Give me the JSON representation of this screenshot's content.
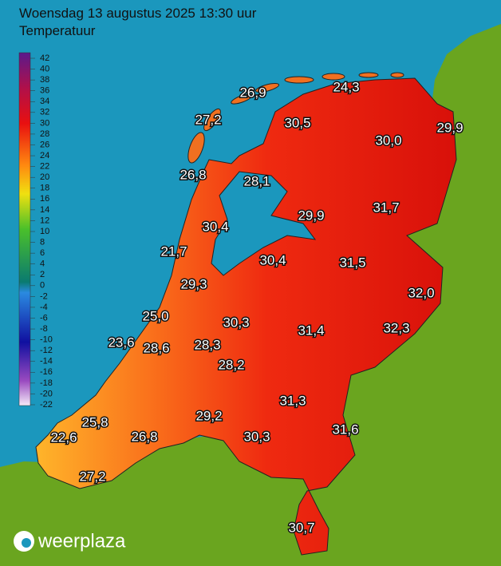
{
  "header": {
    "title": "Woensdag 13 augustus 2025 13:30 uur",
    "subtitle": "Temperatuur"
  },
  "legend": {
    "labels": [
      "42",
      "40",
      "38",
      "36",
      "34",
      "32",
      "30",
      "28",
      "26",
      "24",
      "22",
      "20",
      "18",
      "16",
      "14",
      "12",
      "10",
      "8",
      "6",
      "4",
      "2",
      "0",
      "-2",
      "-4",
      "-6",
      "-8",
      "-10",
      "-12",
      "-14",
      "-16",
      "-18",
      "-20",
      "-22"
    ]
  },
  "stations": [
    "26,9",
    "24,3",
    "27,2",
    "30,5",
    "29,9",
    "30,0",
    "26,8",
    "28,1",
    "29,9",
    "31,7",
    "30,4",
    "21,7",
    "30,4",
    "31,5",
    "32,0",
    "29,3",
    "25,0",
    "30,3",
    "31,4",
    "32,3",
    "23,6",
    "28,6",
    "28,3",
    "28,2",
    "31,3",
    "29,2",
    "25,8",
    "26,8",
    "22,6",
    "31,6",
    "30,3",
    "27,2",
    "30,7"
  ],
  "logo": "weerplaza"
}
